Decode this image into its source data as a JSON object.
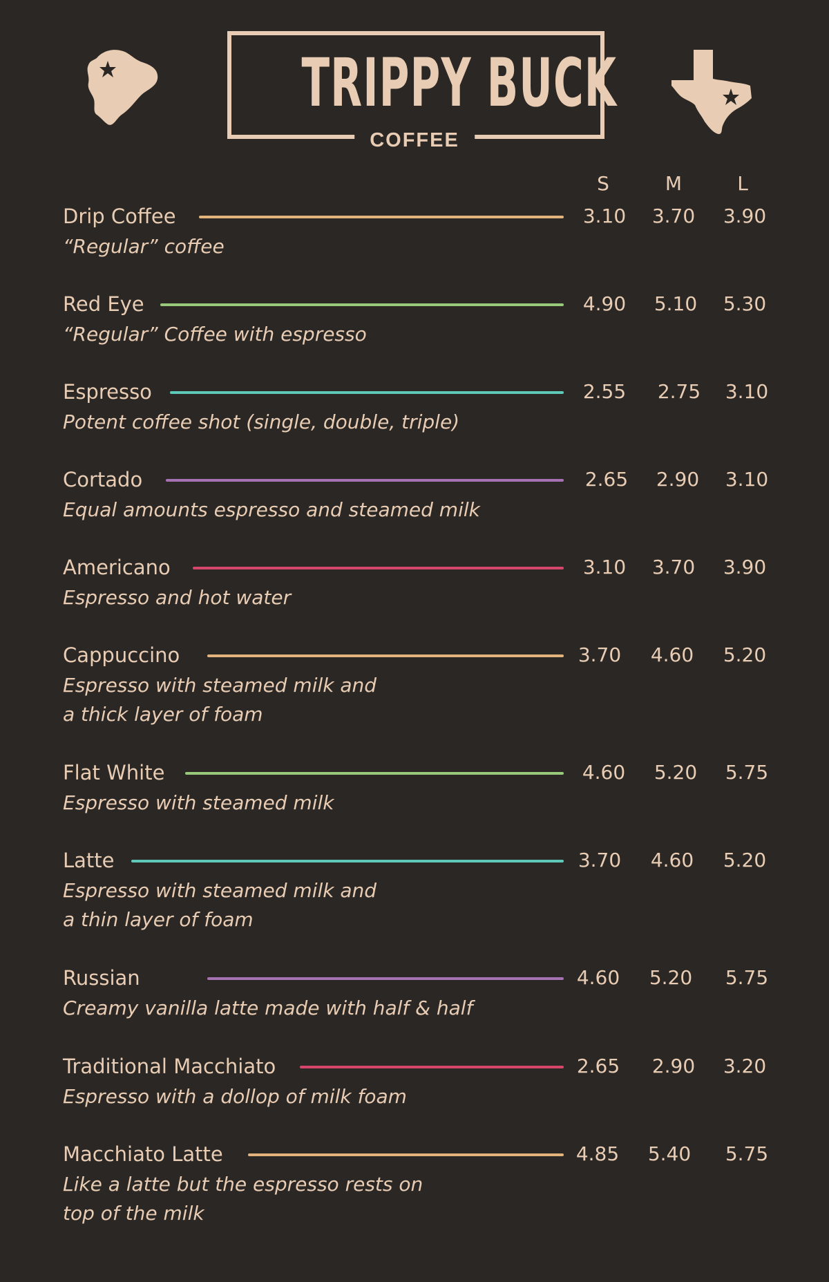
{
  "header": {
    "title": "TRIPPY BUCK",
    "subtitle": "COFFEE",
    "left_icon": "state-map-icon",
    "right_icon": "texas-map-icon"
  },
  "sizes": [
    "S",
    "M",
    "L"
  ],
  "colors": {
    "background": "#2b2724",
    "text": "#e8ccb3",
    "orange": "#e2b47b",
    "green": "#98c97a",
    "teal": "#5fc9b9",
    "purple": "#a772b4",
    "red": "#d6466a"
  },
  "items": [
    {
      "name": "Drip Coffee",
      "desc": "“Regular” coffee",
      "prices": [
        "3.10",
        "3.70",
        "3.90"
      ],
      "color": "#e2b47b"
    },
    {
      "name": "Red Eye",
      "desc": "“Regular” Coffee with espresso",
      "prices": [
        "4.90",
        "5.10",
        "5.30"
      ],
      "color": "#98c97a"
    },
    {
      "name": "Espresso",
      "desc": "Potent coffee shot (single, double, triple)",
      "prices": [
        "2.55",
        "2.75",
        "3.10"
      ],
      "color": "#5fc9b9"
    },
    {
      "name": "Cortado",
      "desc": "Equal amounts espresso and steamed milk",
      "prices": [
        "2.65",
        "2.90",
        "3.10"
      ],
      "color": "#a772b4"
    },
    {
      "name": "Americano",
      "desc": "Espresso and hot water",
      "prices": [
        "3.10",
        "3.70",
        "3.90"
      ],
      "color": "#d6466a"
    },
    {
      "name": "Cappuccino",
      "desc": "Espresso with steamed milk and\na  thick layer of foam",
      "prices": [
        "3.70",
        "4.60",
        "5.20"
      ],
      "color": "#e2b47b"
    },
    {
      "name": "Flat White",
      "desc": "Espresso with steamed milk",
      "prices": [
        "4.60",
        "5.20",
        "5.75"
      ],
      "color": "#98c97a"
    },
    {
      "name": "Latte",
      "desc": "Espresso with steamed milk and\na thin layer of foam",
      "prices": [
        "3.70",
        "4.60",
        "5.20"
      ],
      "color": "#5fc9b9"
    },
    {
      "name": "Russian",
      "desc": "Creamy vanilla latte made with half & half",
      "prices": [
        "4.60",
        "5.20",
        "5.75"
      ],
      "color": "#a772b4"
    },
    {
      "name": "Traditional Macchiato",
      "desc": "Espresso with a dollop of milk foam",
      "prices": [
        "2.65",
        "2.90",
        "3.20"
      ],
      "color": "#d6466a"
    },
    {
      "name": "Macchiato Latte",
      "desc": "Like a latte but the espresso rests on\ntop of the milk",
      "prices": [
        "4.85",
        "5.40",
        "5.75"
      ],
      "color": "#e2b47b"
    }
  ]
}
